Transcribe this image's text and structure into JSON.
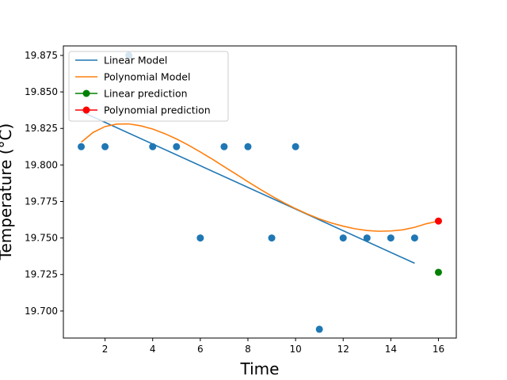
{
  "chart_data": {
    "type": "scatter",
    "title": "",
    "xlabel": "Time",
    "ylabel": "Temperature (°C)",
    "xlim": [
      0.25,
      16.75
    ],
    "ylim": [
      19.6815,
      19.8815
    ],
    "xticks": [
      2,
      4,
      6,
      8,
      10,
      12,
      14,
      16
    ],
    "yticks": [
      19.7,
      19.725,
      19.75,
      19.775,
      19.8,
      19.825,
      19.85,
      19.875
    ],
    "grid": false,
    "legend_position": "top-left",
    "observed": {
      "color": "#1f77b4",
      "x": [
        1,
        2,
        3,
        4,
        5,
        6,
        7,
        8,
        9,
        10,
        11,
        12,
        13,
        14,
        15
      ],
      "y": [
        19.8125,
        19.8125,
        19.875,
        19.8125,
        19.8125,
        19.75,
        19.8125,
        19.8125,
        19.75,
        19.8125,
        19.6875,
        19.75,
        19.75,
        19.75,
        19.75
      ]
    },
    "series": [
      {
        "name": "Linear Model",
        "kind": "line",
        "color": "#1f77b4",
        "x": [
          1,
          15
        ],
        "y": [
          19.8366,
          19.7327
        ]
      },
      {
        "name": "Polynomial Model",
        "kind": "line",
        "color": "#ff7f0e",
        "x": [
          1,
          1.5,
          2,
          2.5,
          3,
          3.5,
          4,
          4.5,
          5,
          5.5,
          6,
          6.5,
          7,
          7.5,
          8,
          8.5,
          9,
          9.5,
          10,
          10.5,
          11,
          11.5,
          12,
          12.5,
          13,
          13.5,
          14,
          14.5,
          15,
          15.5,
          16
        ],
        "y": [
          19.8156,
          19.8223,
          19.8263,
          19.828,
          19.8281,
          19.8268,
          19.8246,
          19.8215,
          19.8178,
          19.8136,
          19.8089,
          19.804,
          19.7988,
          19.7937,
          19.7885,
          19.7835,
          19.7787,
          19.7742,
          19.7701,
          19.7664,
          19.7631,
          19.7603,
          19.7581,
          19.7563,
          19.7551,
          19.7546,
          19.7548,
          19.7556,
          19.7573,
          19.7598,
          19.7616
        ]
      },
      {
        "name": "Linear prediction",
        "kind": "point",
        "color": "#008000",
        "x": [
          16
        ],
        "y": [
          19.7265
        ]
      },
      {
        "name": "Polynomial prediction",
        "kind": "point",
        "color": "#ff0000",
        "x": [
          16
        ],
        "y": [
          19.7616
        ]
      }
    ]
  }
}
